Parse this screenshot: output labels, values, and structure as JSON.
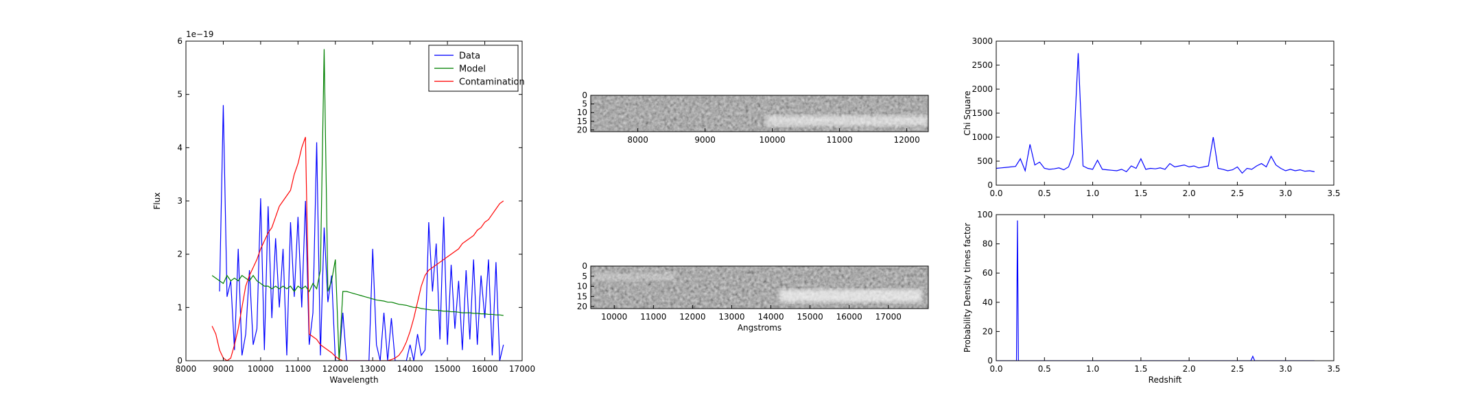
{
  "chart_data": [
    {
      "type": "line",
      "xlabel": "Wavelength",
      "ylabel": "Flux",
      "offset_label": "1e−19",
      "xlim": [
        8000,
        17000
      ],
      "xticks": [
        8000,
        9000,
        10000,
        11000,
        12000,
        13000,
        14000,
        15000,
        16000,
        17000
      ],
      "ylim": [
        0,
        6
      ],
      "yticks": [
        0,
        1,
        2,
        3,
        4,
        5,
        6
      ],
      "legend": "upper right",
      "x": [
        8700,
        8800,
        8900,
        9000,
        9100,
        9200,
        9300,
        9400,
        9500,
        9600,
        9700,
        9800,
        9900,
        10000,
        10100,
        10200,
        10300,
        10400,
        10500,
        10600,
        10700,
        10800,
        10900,
        11000,
        11100,
        11200,
        11300,
        11400,
        11500,
        11600,
        11700,
        11800,
        11900,
        12000,
        12100,
        12200,
        12300,
        12400,
        12500,
        12600,
        12700,
        12800,
        12900,
        13000,
        13100,
        13200,
        13300,
        13400,
        13500,
        13600,
        13700,
        13800,
        13900,
        14000,
        14100,
        14200,
        14300,
        14400,
        14500,
        14600,
        14700,
        14800,
        14900,
        15000,
        15100,
        15200,
        15300,
        15400,
        15500,
        15600,
        15700,
        15800,
        15900,
        16000,
        16100,
        16200,
        16300,
        16400,
        16500
      ],
      "series": [
        {
          "name": "Data",
          "color": "#0000ff",
          "values": [
            null,
            null,
            1.3,
            4.8,
            1.2,
            1.5,
            0.2,
            2.1,
            0.1,
            0.5,
            1.7,
            0.3,
            0.6,
            3.05,
            0.2,
            2.9,
            0.8,
            2.3,
            1.0,
            2.1,
            0.1,
            2.6,
            1.2,
            2.7,
            1.0,
            3.0,
            0.3,
            0.9,
            4.1,
            0.1,
            2.5,
            1.1,
            1.6,
            0,
            0,
            0.9,
            0,
            0,
            0,
            0,
            0,
            0,
            0,
            2.1,
            0.3,
            0,
            0.9,
            0,
            0.8,
            0,
            0,
            0,
            0,
            0.3,
            0,
            0.5,
            0.1,
            0.2,
            2.6,
            1.3,
            2.2,
            0.4,
            2.7,
            0.3,
            1.8,
            0.6,
            1.5,
            0.2,
            1.7,
            0.4,
            1.9,
            0.3,
            1.6,
            0.8,
            1.9,
            0.1,
            1.85,
            0,
            0.3
          ]
        },
        {
          "name": "Model",
          "color": "#008000",
          "values": [
            1.6,
            1.55,
            1.5,
            1.45,
            1.6,
            1.5,
            1.55,
            1.5,
            1.6,
            1.55,
            1.5,
            1.6,
            1.5,
            1.45,
            1.4,
            1.4,
            1.35,
            1.4,
            1.35,
            1.4,
            1.35,
            1.4,
            1.3,
            1.4,
            1.35,
            1.4,
            1.3,
            1.45,
            1.35,
            1.7,
            5.85,
            1.3,
            1.5,
            1.9,
            0,
            1.3,
            1.3,
            1.28,
            1.26,
            1.24,
            1.22,
            1.2,
            1.18,
            1.16,
            1.14,
            1.13,
            1.12,
            1.1,
            1.1,
            1.08,
            1.06,
            1.05,
            1.04,
            1.02,
            1.0,
            1.0,
            0.98,
            0.97,
            0.96,
            0.95,
            0.95,
            0.94,
            0.93,
            0.93,
            0.92,
            0.92,
            0.91,
            0.9,
            0.9,
            0.9,
            0.89,
            0.89,
            0.88,
            0.88,
            0.87,
            0.87,
            0.86,
            0.86,
            0.85
          ]
        },
        {
          "name": "Contamination",
          "color": "#ff0000",
          "values": [
            0.65,
            0.5,
            0.2,
            0.05,
            0,
            0.05,
            0.3,
            0.6,
            1.0,
            1.4,
            1.6,
            1.75,
            1.9,
            2.1,
            2.25,
            2.4,
            2.5,
            2.7,
            2.9,
            3.0,
            3.1,
            3.2,
            3.5,
            3.7,
            4.0,
            4.2,
            0.5,
            0.45,
            0.4,
            0.3,
            0.25,
            0.2,
            0.15,
            0.08,
            0.03,
            0,
            0,
            0,
            0,
            0,
            0,
            0,
            0,
            0,
            0,
            0,
            0,
            0,
            0.02,
            0.05,
            0.1,
            0.2,
            0.35,
            0.55,
            0.8,
            1.1,
            1.4,
            1.6,
            1.7,
            1.75,
            1.8,
            1.85,
            1.9,
            1.95,
            2.0,
            2.05,
            2.1,
            2.2,
            2.25,
            2.3,
            2.35,
            2.45,
            2.5,
            2.6,
            2.65,
            2.75,
            2.85,
            2.95,
            3.0
          ]
        }
      ]
    },
    {
      "type": "image",
      "xlim": [
        7300,
        12320
      ],
      "xticks": [
        8000,
        9000,
        10000,
        11000,
        12000
      ],
      "ylim": [
        21,
        0
      ],
      "yticks": [
        0,
        5,
        10,
        15,
        20
      ]
    },
    {
      "type": "image",
      "xlabel": "Angstroms",
      "xlim": [
        9400,
        18020
      ],
      "xticks": [
        10000,
        11000,
        12000,
        13000,
        14000,
        15000,
        16000,
        17000
      ],
      "ylim": [
        21,
        0
      ],
      "yticks": [
        0,
        5,
        10,
        15,
        20
      ]
    },
    {
      "type": "line",
      "ylabel": "Chi Square",
      "xlim": [
        0,
        3.5
      ],
      "xticks": [
        {
          "value": 0,
          "label": "0.0"
        },
        0.5,
        {
          "value": 1,
          "label": "1.0"
        },
        1.5,
        {
          "value": 2,
          "label": "2.0"
        },
        2.5,
        {
          "value": 3,
          "label": "3.0"
        },
        3.5
      ],
      "ylim": [
        0,
        3000
      ],
      "yticks": [
        0,
        500,
        1000,
        1500,
        2000,
        2500,
        3000
      ],
      "x": [
        0,
        0.05,
        0.1,
        0.15,
        0.2,
        0.25,
        0.3,
        0.35,
        0.4,
        0.45,
        0.5,
        0.55,
        0.6,
        0.65,
        0.7,
        0.75,
        0.8,
        0.85,
        0.9,
        0.95,
        1.0,
        1.05,
        1.1,
        1.15,
        1.2,
        1.25,
        1.3,
        1.35,
        1.4,
        1.45,
        1.5,
        1.55,
        1.6,
        1.65,
        1.7,
        1.75,
        1.8,
        1.85,
        1.9,
        1.95,
        2.0,
        2.05,
        2.1,
        2.15,
        2.2,
        2.25,
        2.3,
        2.35,
        2.4,
        2.45,
        2.5,
        2.55,
        2.6,
        2.65,
        2.7,
        2.75,
        2.8,
        2.85,
        2.9,
        2.95,
        3.0,
        3.05,
        3.1,
        3.15,
        3.2,
        3.25,
        3.3
      ],
      "series": [
        {
          "color": "#0000ff",
          "values": [
            350,
            360,
            370,
            380,
            390,
            550,
            300,
            850,
            420,
            480,
            350,
            330,
            340,
            360,
            320,
            380,
            650,
            2750,
            400,
            350,
            330,
            520,
            330,
            320,
            310,
            300,
            330,
            280,
            400,
            350,
            550,
            330,
            350,
            340,
            360,
            330,
            450,
            380,
            400,
            420,
            380,
            400,
            360,
            380,
            400,
            1000,
            350,
            330,
            300,
            320,
            380,
            250,
            350,
            330,
            400,
            450,
            380,
            600,
            420,
            350,
            300,
            330,
            300,
            320,
            290,
            300,
            280
          ]
        }
      ]
    },
    {
      "type": "line",
      "xlabel": "Redshift",
      "ylabel": "Probability Density times factor",
      "xlim": [
        0,
        3.5
      ],
      "xticks": [
        {
          "value": 0,
          "label": "0.0"
        },
        0.5,
        {
          "value": 1,
          "label": "1.0"
        },
        1.5,
        {
          "value": 2,
          "label": "2.0"
        },
        2.5,
        {
          "value": 3,
          "label": "3.0"
        },
        3.5
      ],
      "ylim": [
        0,
        100
      ],
      "yticks": [
        0,
        20,
        40,
        60,
        80,
        100
      ],
      "x": [
        0,
        0.2,
        0.21,
        0.22,
        0.23,
        0.24,
        0.5,
        1.0,
        1.5,
        2.0,
        2.5,
        2.64,
        2.66,
        2.68,
        3.0,
        3.3
      ],
      "series": [
        {
          "color": "#0000ff",
          "values": [
            0,
            0,
            0,
            96,
            0,
            0,
            0,
            0,
            0,
            0,
            0,
            0,
            3,
            0,
            0,
            0
          ]
        }
      ]
    }
  ]
}
